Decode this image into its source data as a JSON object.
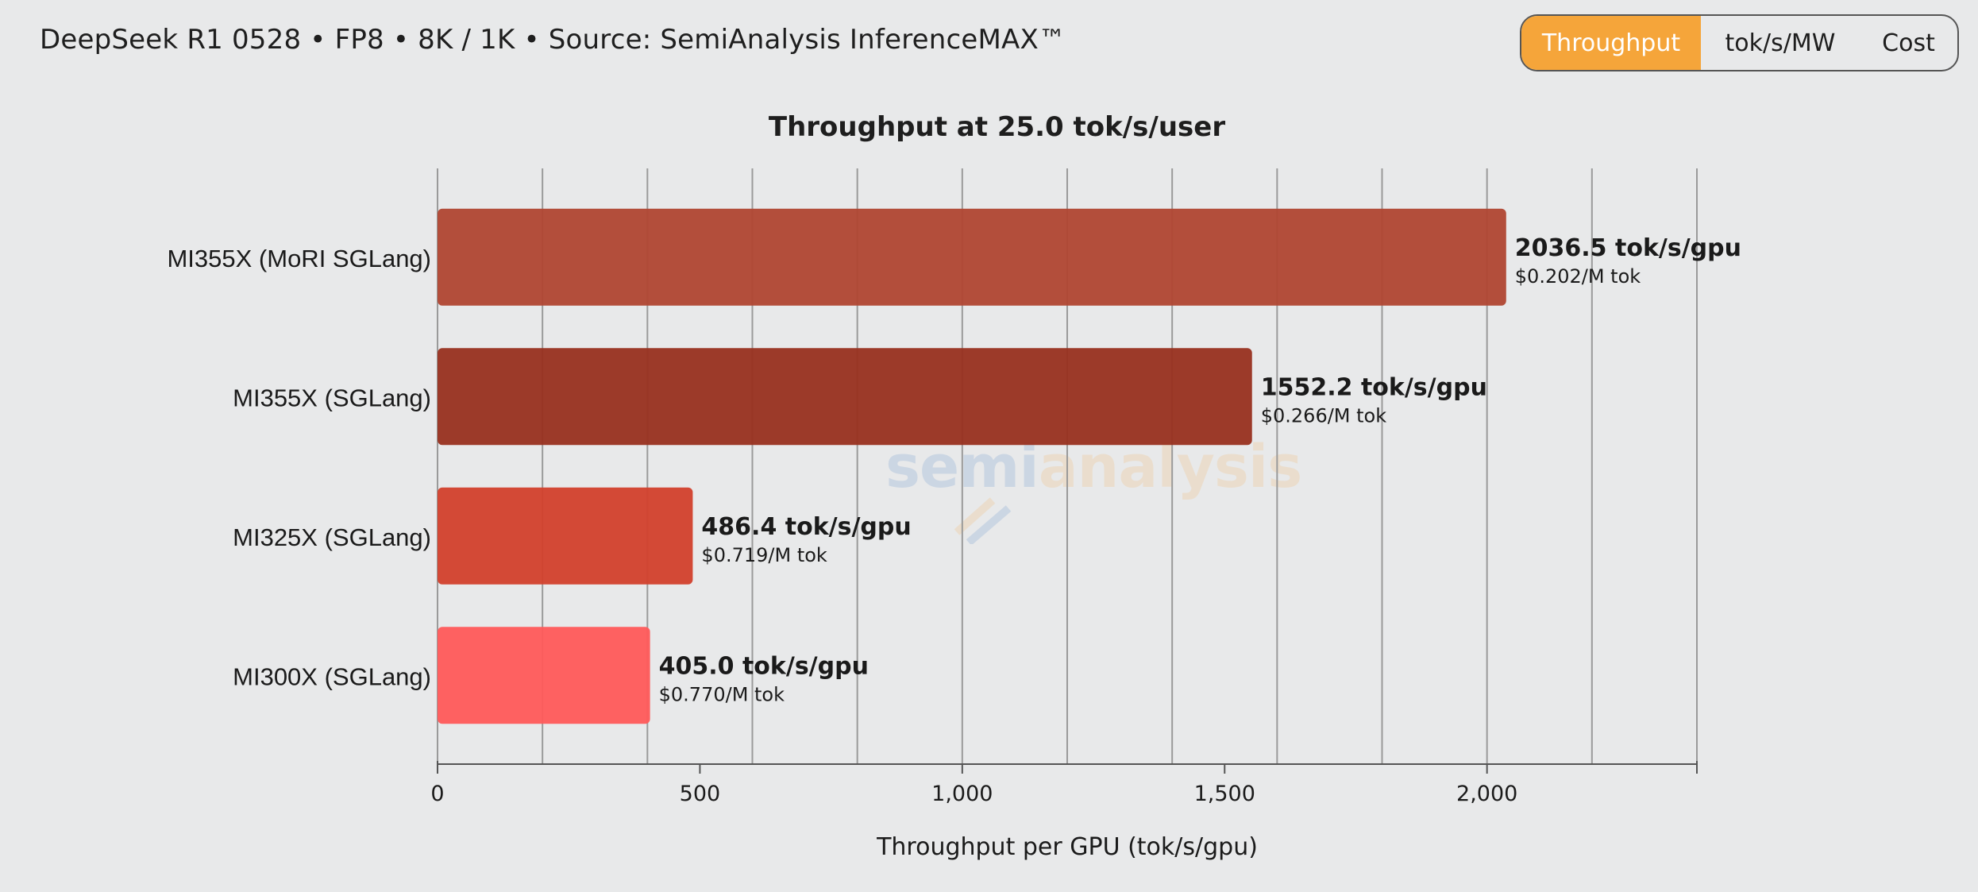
{
  "header": {
    "subtitle": "DeepSeek R1 0528 • FP8 • 8K / 1K • Source: SemiAnalysis InferenceMAX™"
  },
  "toggle": {
    "items": [
      {
        "label": "Throughput",
        "active": true
      },
      {
        "label": "tok/s/MW",
        "active": false
      },
      {
        "label": "Cost",
        "active": false
      }
    ],
    "active_color": "#f5a53a"
  },
  "watermark": {
    "part1": "semi",
    "part2": "analysis"
  },
  "chart_data": {
    "type": "bar",
    "orientation": "horizontal",
    "title": "Throughput at 25.0 tok/s/user",
    "xlabel": "Throughput per GPU (tok/s/gpu)",
    "ylabel": "",
    "xlim": [
      0,
      2400
    ],
    "xticks": [
      0,
      500,
      1000,
      1500,
      2000
    ],
    "xtick_labels": [
      "0",
      "500",
      "1,000",
      "1,500",
      "2,000"
    ],
    "grid": true,
    "categories": [
      "MI355X (MoRI SGLang)",
      "MI355X (SGLang)",
      "MI325X (SGLang)",
      "MI300X (SGLang)"
    ],
    "values": [
      2036.5,
      1552.2,
      486.4,
      405.0
    ],
    "value_labels": [
      "2036.5 tok/s/gpu",
      "1552.2 tok/s/gpu",
      "486.4 tok/s/gpu",
      "405.0 tok/s/gpu"
    ],
    "cost_labels": [
      "$0.202/M tok",
      "$0.266/M tok",
      "$0.719/M tok",
      "$0.770/M tok"
    ],
    "colors": [
      "#b04632",
      "#98301f",
      "#d2402c",
      "#ff5a5a"
    ]
  }
}
